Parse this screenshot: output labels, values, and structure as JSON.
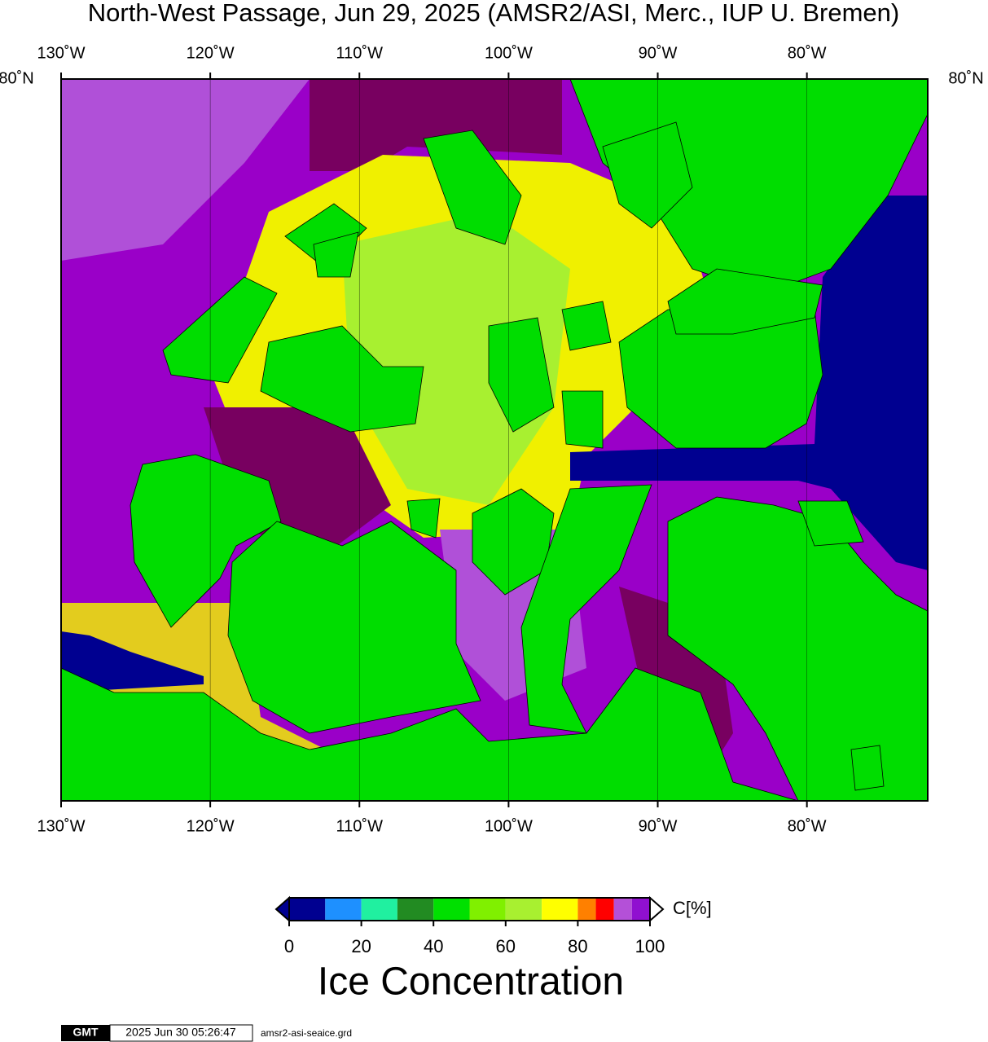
{
  "title": "North-West Passage, Jun 29, 2025 (AMSR2/ASI, Merc., IUP U. Bremen)",
  "map": {
    "lon_range": [
      130,
      71.9
    ],
    "lon_ticks": [
      {
        "value": 130,
        "label": "130˚W"
      },
      {
        "value": 120,
        "label": "120˚W"
      },
      {
        "value": 110,
        "label": "110˚W"
      },
      {
        "value": 100,
        "label": "100˚W"
      },
      {
        "value": 90,
        "label": "90˚W"
      },
      {
        "value": 80,
        "label": "80˚W"
      }
    ],
    "lat_label": {
      "value": 80,
      "label": "80˚N"
    }
  },
  "colorbar": {
    "range": [
      0,
      100
    ],
    "bounds": [
      0,
      10,
      20,
      30,
      40,
      50,
      60,
      70,
      80,
      85,
      90,
      95,
      100
    ],
    "colors": [
      "#000090",
      "#1e90ff",
      "#20f0a0",
      "#228b22",
      "#00e000",
      "#80f000",
      "#a8f030",
      "#ffff00",
      "#ff8000",
      "#ff0000",
      "#b450d8",
      "#9010d0"
    ],
    "ticks": [
      0,
      20,
      40,
      60,
      80,
      100
    ],
    "unit": "C[%]",
    "label": "Ice Concentration"
  },
  "footer": {
    "logo": "GMT",
    "timestamp": "2025 Jun 30 05:26:47",
    "file": "amsr2-asi-seaice.grd"
  }
}
